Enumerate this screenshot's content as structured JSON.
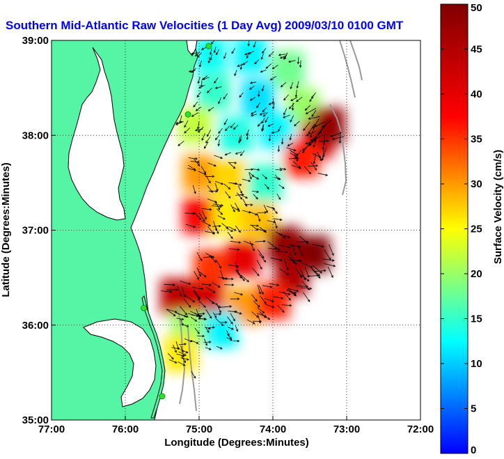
{
  "title": "Southern Mid-Atlantic Raw Velocities (1 Day Avg) 2009/03/10 0100 GMT",
  "map": {
    "x_label": "Longitude (Degrees:Minutes)",
    "y_label": "Latitude (Degrees:Minutes)",
    "lon_range": [
      -77,
      -72
    ],
    "lat_range": [
      35,
      39
    ],
    "x_ticks": [
      {
        "value": -77,
        "label": "77:00"
      },
      {
        "value": -76,
        "label": "76:00"
      },
      {
        "value": -75,
        "label": "75:00"
      },
      {
        "value": -74,
        "label": "74:00"
      },
      {
        "value": -73,
        "label": "73:00"
      },
      {
        "value": -72,
        "label": "72:00"
      }
    ],
    "y_ticks": [
      {
        "value": 35,
        "label": "35:00"
      },
      {
        "value": 36,
        "label": "36:00"
      },
      {
        "value": 37,
        "label": "37:00"
      },
      {
        "value": 38,
        "label": "38:00"
      },
      {
        "value": 39,
        "label": "39:00"
      }
    ],
    "grid": true,
    "land_color": "#55f5a5",
    "coast_color": "#000000",
    "isobath_color": "#999999",
    "station_color": "#33dd33",
    "stations": [
      {
        "lon": -74.87,
        "lat": 38.94
      },
      {
        "lon": -75.15,
        "lat": 38.22
      },
      {
        "lon": -75.75,
        "lat": 36.18
      },
      {
        "lon": -75.5,
        "lat": 35.25
      }
    ]
  },
  "colorbar": {
    "label": "Surface Velocity (cm/s)",
    "min": 0,
    "max": 50,
    "ticks": [
      "0",
      "5",
      "10",
      "15",
      "20",
      "25",
      "30",
      "35",
      "40",
      "45",
      "50"
    ],
    "colormap": "jet"
  },
  "chart_data": {
    "type": "heatmap",
    "title": "Southern Mid-Atlantic Raw Velocities (1 Day Avg) 2009/03/10 0100 GMT",
    "xlabel": "Longitude (Degrees:Minutes)",
    "ylabel": "Latitude (Degrees:Minutes)",
    "xlim": [
      -77,
      -72
    ],
    "ylim": [
      35,
      39
    ],
    "value_label": "Surface Velocity (cm/s)",
    "value_range": [
      0,
      50
    ],
    "regions": [
      {
        "lon": -74.85,
        "lat": 38.85,
        "speed": 13
      },
      {
        "lon": -74.3,
        "lat": 38.85,
        "speed": 12
      },
      {
        "lon": -73.8,
        "lat": 38.7,
        "speed": 18
      },
      {
        "lon": -74.8,
        "lat": 38.45,
        "speed": 15
      },
      {
        "lon": -74.2,
        "lat": 38.4,
        "speed": 11
      },
      {
        "lon": -73.6,
        "lat": 38.3,
        "speed": 20
      },
      {
        "lon": -75.05,
        "lat": 38.1,
        "speed": 22
      },
      {
        "lon": -74.5,
        "lat": 38.0,
        "speed": 14
      },
      {
        "lon": -73.95,
        "lat": 38.05,
        "speed": 12
      },
      {
        "lon": -73.4,
        "lat": 37.95,
        "speed": 42
      },
      {
        "lon": -73.25,
        "lat": 38.1,
        "speed": 48
      },
      {
        "lon": -73.6,
        "lat": 37.75,
        "speed": 36
      },
      {
        "lon": -75.0,
        "lat": 37.6,
        "speed": 30
      },
      {
        "lon": -74.6,
        "lat": 37.55,
        "speed": 27
      },
      {
        "lon": -74.1,
        "lat": 37.5,
        "speed": 15
      },
      {
        "lon": -75.0,
        "lat": 37.15,
        "speed": 38
      },
      {
        "lon": -74.6,
        "lat": 37.15,
        "speed": 26
      },
      {
        "lon": -74.2,
        "lat": 37.1,
        "speed": 28
      },
      {
        "lon": -73.85,
        "lat": 36.85,
        "speed": 48
      },
      {
        "lon": -73.45,
        "lat": 36.75,
        "speed": 50
      },
      {
        "lon": -74.4,
        "lat": 36.7,
        "speed": 40
      },
      {
        "lon": -74.85,
        "lat": 36.6,
        "speed": 35
      },
      {
        "lon": -73.75,
        "lat": 36.5,
        "speed": 46
      },
      {
        "lon": -75.3,
        "lat": 36.3,
        "speed": 44
      },
      {
        "lon": -74.9,
        "lat": 36.25,
        "speed": 42
      },
      {
        "lon": -74.4,
        "lat": 36.2,
        "speed": 30
      },
      {
        "lon": -74.0,
        "lat": 36.25,
        "speed": 36
      },
      {
        "lon": -75.15,
        "lat": 35.95,
        "speed": 20
      },
      {
        "lon": -74.7,
        "lat": 35.95,
        "speed": 12
      },
      {
        "lon": -75.25,
        "lat": 35.7,
        "speed": 26
      }
    ]
  }
}
